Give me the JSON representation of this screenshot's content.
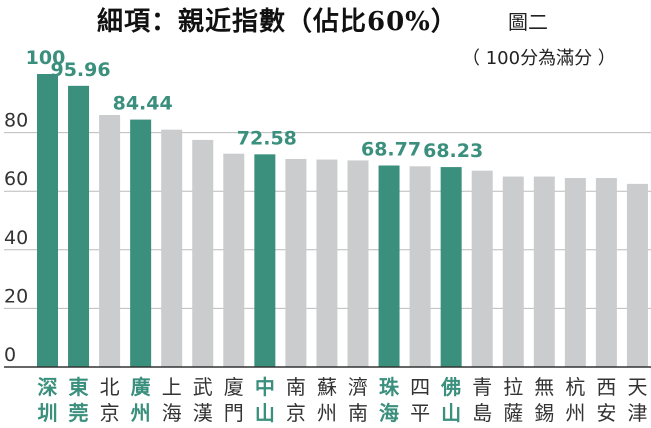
{
  "title": "細項：親近指數（佔比60%）",
  "figure_label": "圖二",
  "note": "（ 100分為滿分 ）",
  "colors": {
    "highlight": "#3a8f7d",
    "normal": "#cbcccd",
    "axis": "#333333",
    "grid": "#bbbbbb",
    "tick_text": "#333333"
  },
  "chart_data": {
    "type": "bar",
    "title": "細項：親近指數（佔比60%）",
    "xlabel": "",
    "ylabel": "",
    "ylim": [
      0,
      100
    ],
    "yticks": [
      0,
      20,
      40,
      60,
      80
    ],
    "grid": true,
    "categories": [
      "深圳",
      "東莞",
      "北京",
      "廣州",
      "上海",
      "武漢",
      "廈門",
      "中山",
      "南京",
      "蘇州",
      "濟南",
      "珠海",
      "四平",
      "佛山",
      "青島",
      "拉薩",
      "無錫",
      "杭州",
      "西安",
      "天津"
    ],
    "values": [
      100,
      95.96,
      86,
      84.44,
      81,
      77.5,
      72.8,
      72.58,
      71,
      70.8,
      70.5,
      68.77,
      68.5,
      68.23,
      67,
      65,
      65,
      64.5,
      64.5,
      62.5
    ],
    "highlighted": [
      true,
      true,
      false,
      true,
      false,
      false,
      false,
      true,
      false,
      false,
      false,
      true,
      false,
      true,
      false,
      false,
      false,
      false,
      false,
      false
    ],
    "data_labels": [
      "100",
      "95.96",
      "",
      "84.44",
      "",
      "",
      "",
      "72.58",
      "",
      "",
      "",
      "68.77",
      "",
      "68.23",
      "",
      "",
      "",
      "",
      "",
      ""
    ]
  }
}
